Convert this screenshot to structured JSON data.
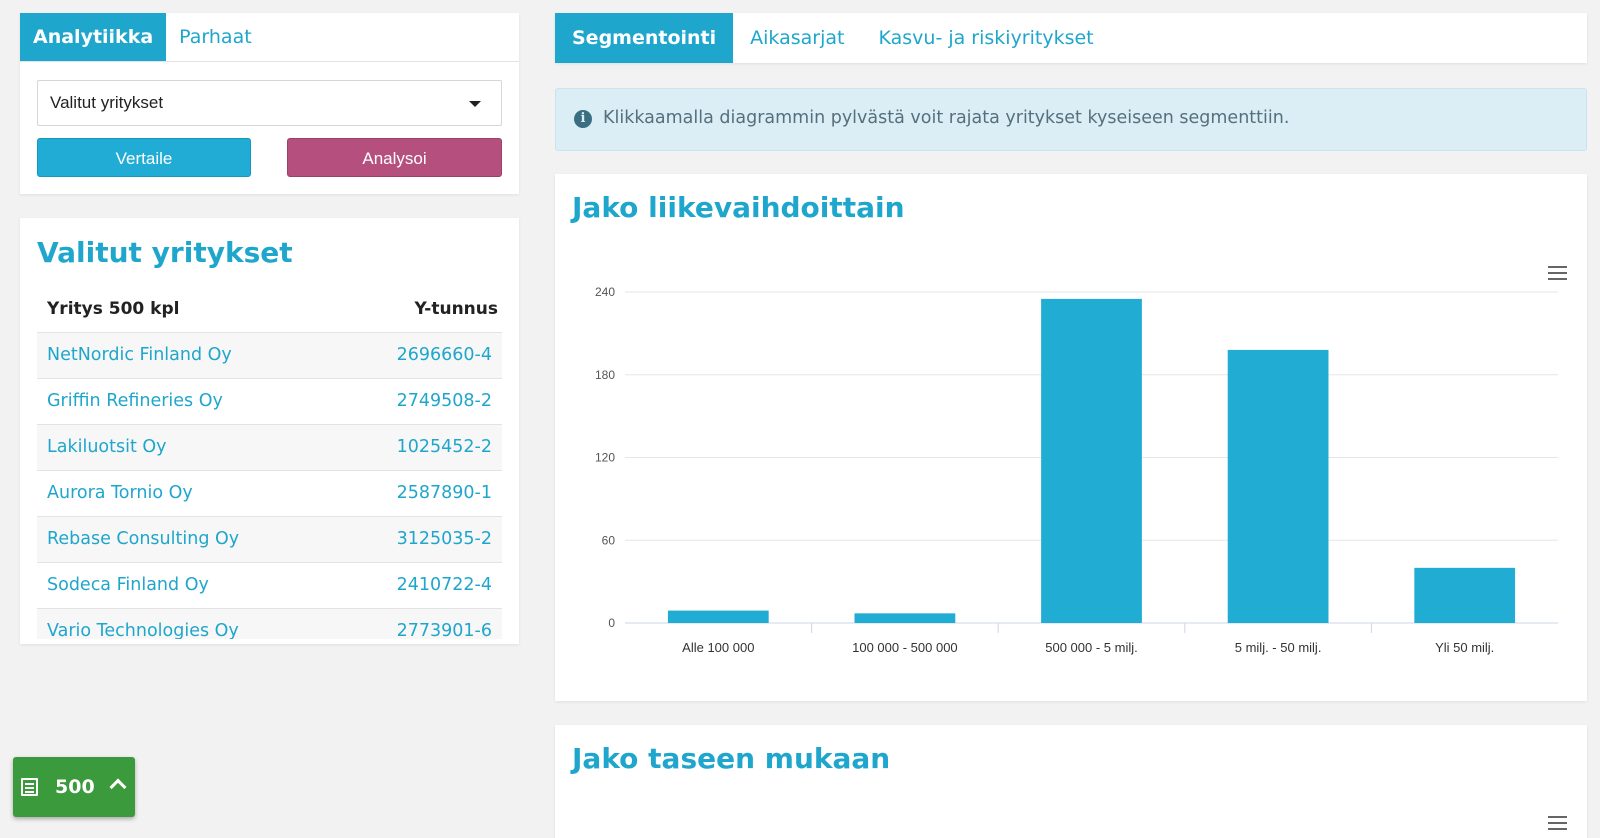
{
  "left_tabs": [
    {
      "label": "Analytiikka",
      "active": true
    },
    {
      "label": "Parhaat",
      "active": false
    }
  ],
  "select": {
    "value": "Valitut yritykset"
  },
  "buttons": {
    "compare": "Vertaile",
    "analyse": "Analysoi"
  },
  "list": {
    "title": "Valitut yritykset",
    "col_company": "Yritys 500 kpl",
    "col_id": "Y-tunnus",
    "rows": [
      {
        "name": "NetNordic Finland Oy",
        "id": "2696660-4"
      },
      {
        "name": "Griffin Refineries Oy",
        "id": "2749508-2"
      },
      {
        "name": "Lakiluotsit Oy",
        "id": "1025452-2"
      },
      {
        "name": "Aurora Tornio Oy",
        "id": "2587890-1"
      },
      {
        "name": "Rebase Consulting Oy",
        "id": "3125035-2"
      },
      {
        "name": "Sodeca Finland Oy",
        "id": "2410722-4"
      },
      {
        "name": "Vario Technologies Oy",
        "id": "2773901-6"
      }
    ]
  },
  "counter": {
    "value": "500"
  },
  "right_tabs": [
    {
      "label": "Segmentointi",
      "active": true
    },
    {
      "label": "Aikasarjat",
      "active": false
    },
    {
      "label": "Kasvu- ja riskiyritykset",
      "active": false
    }
  ],
  "info": {
    "text": "Klikkaamalla diagrammin pylvästä voit rajata yritykset kyseiseen segmenttiin."
  },
  "chart1": {
    "title": "Jako liikevaihdoittain"
  },
  "chart2": {
    "title": "Jako taseen mukaan"
  },
  "colors": {
    "accent": "#1fa6cc",
    "bar": "#21acd3",
    "analyse": "#b5507e",
    "counter": "#3b9a3b"
  },
  "chart_data": [
    {
      "type": "bar",
      "title": "Jako liikevaihdoittain",
      "categories": [
        "Alle 100 000",
        "100 000 - 500 000",
        "500 000 - 5 milj.",
        "5 milj. - 50 milj.",
        "Yli 50 milj."
      ],
      "values": [
        9,
        7,
        235,
        198,
        40
      ],
      "yticks": [
        0,
        60,
        120,
        180,
        240
      ],
      "ylim": [
        0,
        240
      ],
      "xlabel": "",
      "ylabel": "",
      "grid": true,
      "legend": "none"
    },
    {
      "type": "bar",
      "title": "Jako taseen mukaan"
    }
  ]
}
